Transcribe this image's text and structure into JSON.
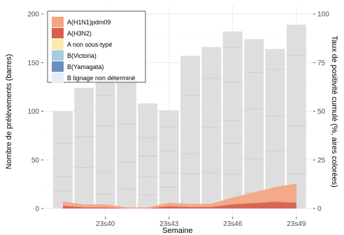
{
  "chart_data": {
    "type": "bar",
    "xlabel": "Semaine",
    "ylabel": "Nombre de prélèvements (barres)",
    "y2label": "Taux de positivité cumulé (%, aires colorées)",
    "ylim": [
      0,
      200
    ],
    "y2lim": [
      0,
      100
    ],
    "yticks": [
      0,
      50,
      100,
      150,
      200
    ],
    "y2ticks": [
      0,
      25,
      50,
      75,
      100
    ],
    "xtick_labels": [
      {
        "week_index": 2,
        "label": "23s40"
      },
      {
        "week_index": 5,
        "label": "23s43"
      },
      {
        "week_index": 8,
        "label": "23s46"
      },
      {
        "week_index": 11,
        "label": "23s49"
      }
    ],
    "grid": true,
    "legend_position": "top-left",
    "bars": {
      "color": "#dedede",
      "values": [
        100,
        124,
        136,
        140,
        108,
        101,
        157,
        166,
        182,
        174,
        164,
        189
      ],
      "inner_segments": [
        [
          18,
          33,
          67
        ],
        [
          42,
          74
        ],
        [
          15,
          38,
          85,
          116
        ],
        [
          20,
          48,
          87
        ],
        [
          14,
          33,
          54,
          73
        ],
        [
          22,
          37,
          59,
          84
        ],
        [
          36,
          56,
          116
        ],
        [
          37,
          83,
          134
        ],
        [
          35,
          67,
          91,
          130,
          166
        ],
        [
          16,
          51,
          102,
          140
        ],
        [
          17,
          59,
          95,
          143
        ],
        [
          36,
          85,
          157
        ]
      ]
    },
    "series": [
      {
        "name": "A(H1N1)pdm09",
        "color": "#f4a582",
        "values": [
          2.1,
          1.5,
          1.5,
          0.5,
          0.5,
          1.8,
          1.5,
          1.6,
          3.5,
          5.5,
          7.5,
          9.8
        ]
      },
      {
        "name": "A(H3N2)",
        "color": "#d6604d",
        "values": [
          1.5,
          0.6,
          0.6,
          0.1,
          0.1,
          1.2,
          0.8,
          0.8,
          2.2,
          2.8,
          3.5,
          3.0
        ]
      },
      {
        "name": "A non sous-typé",
        "color": "#fde9a9",
        "values": [
          0,
          0,
          0,
          0,
          0,
          0,
          0,
          0,
          0,
          0,
          0,
          0
        ]
      },
      {
        "name": "B(Victoria)",
        "color": "#a6cbe3",
        "values": [
          0,
          0,
          0,
          0,
          0,
          0,
          0,
          0,
          0,
          0,
          0,
          0
        ]
      },
      {
        "name": "B(Yamagata)",
        "color": "#6a8fc1",
        "values": [
          0,
          0,
          0,
          0,
          0,
          0,
          0,
          0,
          0,
          0,
          0,
          0
        ]
      },
      {
        "name": "B lignage non déterminé",
        "color": "#e4eff7",
        "values": [
          0,
          0,
          0,
          0,
          0,
          0,
          0,
          0,
          0,
          0,
          0,
          0
        ]
      }
    ]
  }
}
